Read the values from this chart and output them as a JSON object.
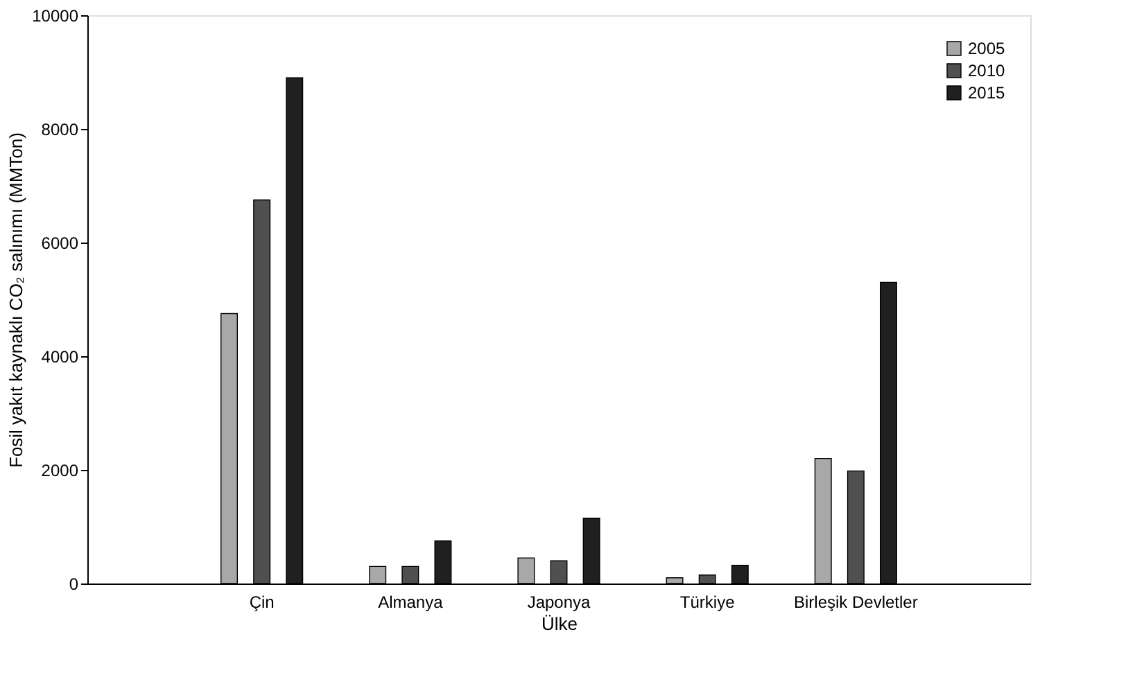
{
  "chart_data": {
    "type": "bar",
    "xlabel": "Ülke",
    "ylabel": "Fosil yakıt kaynaklı CO₂ salınımı (MMTon)",
    "categories": [
      "Çin",
      "Almanya",
      "Japonya",
      "Türkiye",
      "Birleşik Devletler"
    ],
    "series": [
      {
        "name": "2005",
        "color": "#a8a8a8",
        "values": [
          4750,
          300,
          450,
          100,
          2200
        ]
      },
      {
        "name": "2010",
        "color": "#505050",
        "values": [
          6750,
          300,
          400,
          150,
          1980
        ]
      },
      {
        "name": "2015",
        "color": "#202020",
        "values": [
          8900,
          750,
          1150,
          320,
          5300
        ]
      }
    ],
    "ylim": [
      0,
      10000
    ],
    "yticks": [
      0,
      2000,
      4000,
      6000,
      8000,
      10000
    ],
    "grid": false,
    "legend": "top right"
  }
}
